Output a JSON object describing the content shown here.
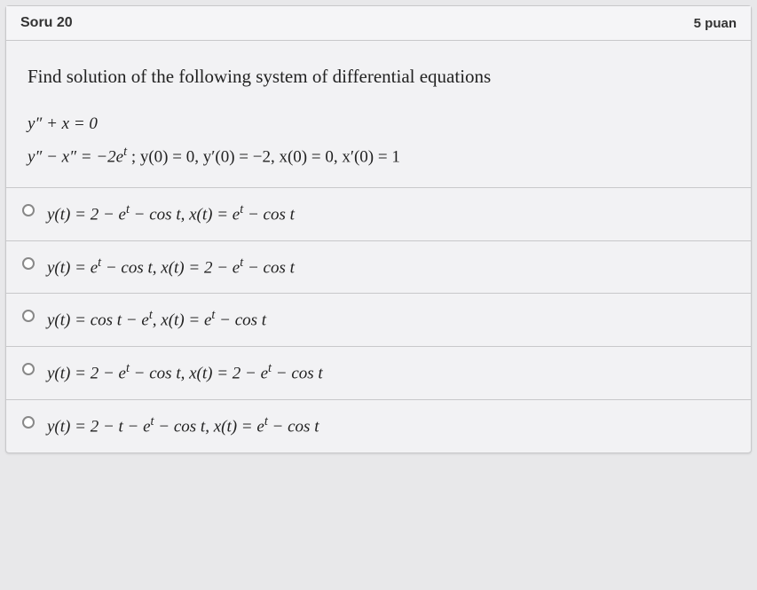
{
  "header": {
    "title": "Soru 20",
    "points": "5 puan"
  },
  "question": {
    "prompt": "Find solution of the following system of differential equations",
    "eq1": "y″ + x = 0",
    "eq2_left": "y″ − x″ = −2e",
    "eq2_sup": "t",
    "eq2_right": " ; y(0) = 0, y′(0) = −2, x(0) = 0, x′(0) = 1"
  },
  "options": [
    {
      "text_parts": [
        "y(t) = 2 − e",
        "t",
        " − cos t,  x(t) = e",
        "t",
        " − cos t"
      ]
    },
    {
      "text_parts": [
        "y(t) = e",
        "t",
        " − cos t,  x(t) = 2 − e",
        "t",
        " − cos t"
      ]
    },
    {
      "text_parts": [
        "y(t) = cos t − e",
        "t",
        ",  x(t) = e",
        "t",
        " − cos t"
      ]
    },
    {
      "text_parts": [
        "y(t) = 2 − e",
        "t",
        " − cos t,  x(t) = 2 − e",
        "t",
        " − cos t"
      ]
    },
    {
      "text_parts": [
        "y(t) = 2 − t − e",
        "t",
        " − cos t,  x(t) = e",
        "t",
        " − cos t"
      ]
    }
  ],
  "styling": {
    "background_color": "#e8e8ea",
    "container_bg": "#f2f2f4",
    "border_color": "#c8c8ca",
    "text_color": "#222",
    "header_font": "Arial",
    "body_font": "Georgia",
    "prompt_fontsize": 21,
    "option_fontsize": 19,
    "header_fontsize": 16
  }
}
